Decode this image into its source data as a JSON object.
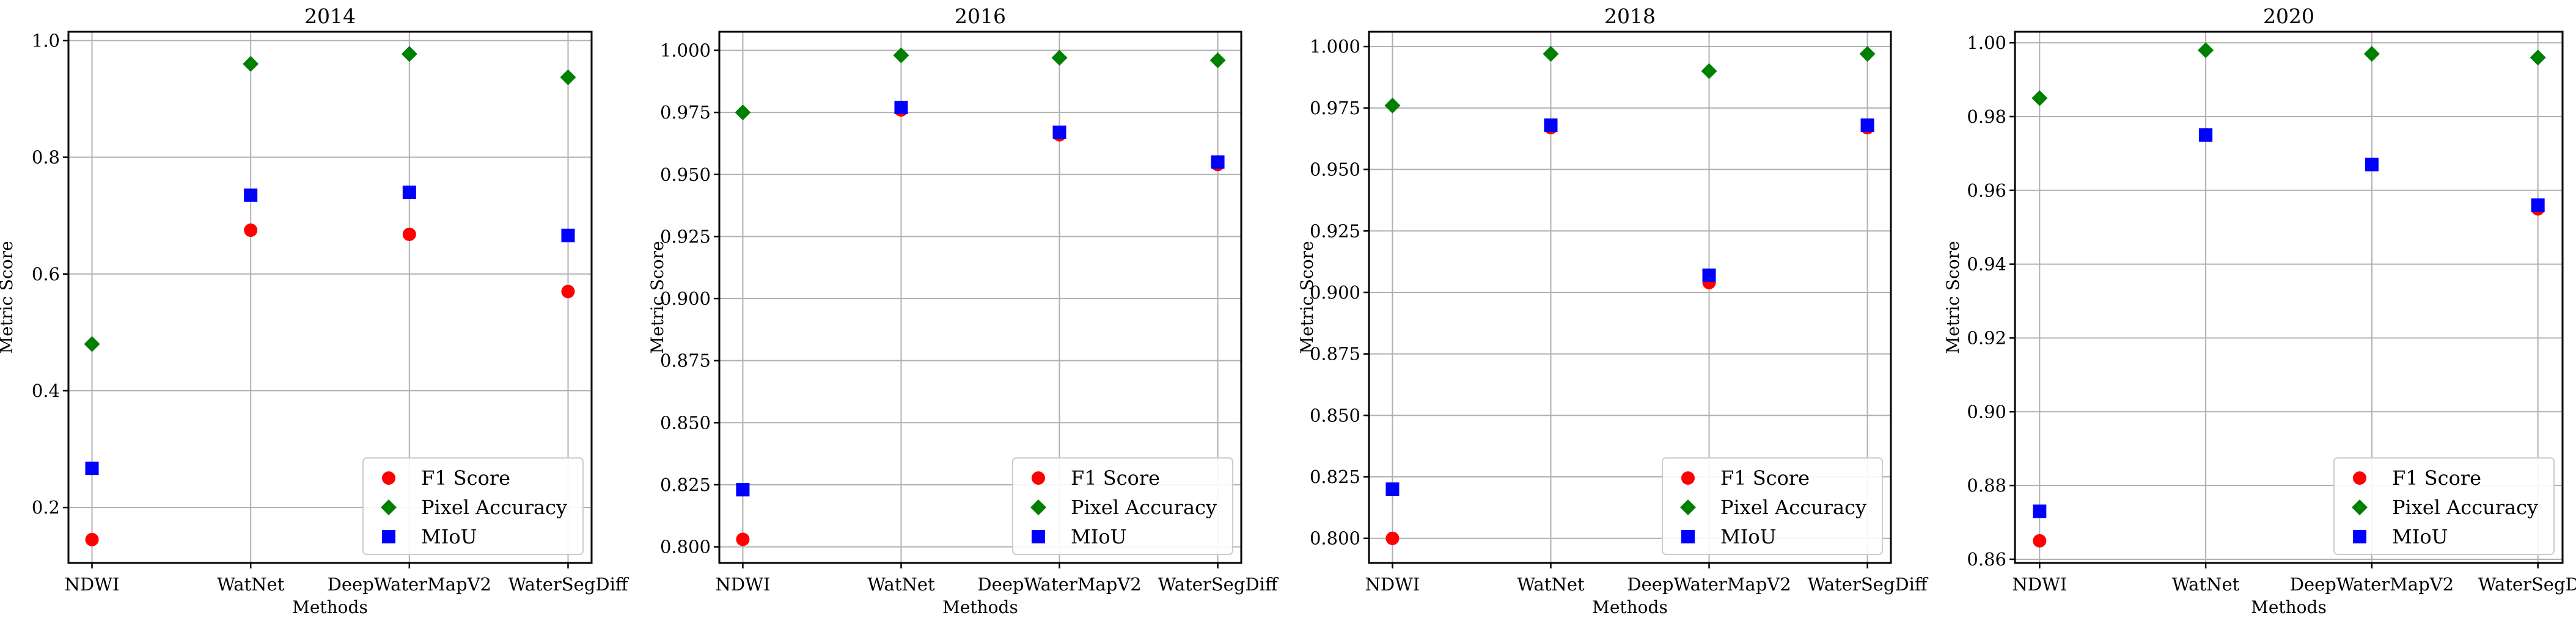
{
  "chart_data": [
    {
      "type": "scatter",
      "title": "2014",
      "xlabel": "Methods",
      "ylabel": "Metric Score",
      "categories": [
        "NDWI",
        "WatNet",
        "DeepWaterMapV2",
        "WaterSegDiff"
      ],
      "ylim": [
        0.105,
        1.015
      ],
      "yticks": [
        0.2,
        0.4,
        0.6,
        0.8,
        1.0
      ],
      "ytick_labels": [
        "0.2",
        "0.4",
        "0.6",
        "0.8",
        "1.0"
      ],
      "grid": true,
      "legend_position": "bottom-right",
      "series": [
        {
          "name": "F1 Score",
          "marker": "circle",
          "color": "#ff0000",
          "values": [
            0.145,
            0.675,
            0.668,
            0.57
          ]
        },
        {
          "name": "Pixel Accuracy",
          "marker": "diamond",
          "color": "#008000",
          "values": [
            0.48,
            0.96,
            0.977,
            0.937
          ]
        },
        {
          "name": "MIoU",
          "marker": "square",
          "color": "#0000ff",
          "values": [
            0.267,
            0.735,
            0.74,
            0.666
          ]
        }
      ]
    },
    {
      "type": "scatter",
      "title": "2016",
      "xlabel": "Methods",
      "ylabel": "Metric Score",
      "categories": [
        "NDWI",
        "WatNet",
        "DeepWaterMapV2",
        "WaterSegDiff"
      ],
      "ylim": [
        0.7935,
        1.0075
      ],
      "yticks": [
        0.8,
        0.825,
        0.85,
        0.875,
        0.9,
        0.925,
        0.95,
        0.975,
        1.0
      ],
      "ytick_labels": [
        "0.800",
        "0.825",
        "0.850",
        "0.875",
        "0.900",
        "0.925",
        "0.950",
        "0.975",
        "1.000"
      ],
      "grid": true,
      "legend_position": "bottom-right",
      "series": [
        {
          "name": "F1 Score",
          "marker": "circle",
          "color": "#ff0000",
          "values": [
            0.803,
            0.976,
            0.966,
            0.954
          ]
        },
        {
          "name": "Pixel Accuracy",
          "marker": "diamond",
          "color": "#008000",
          "values": [
            0.975,
            0.998,
            0.997,
            0.996
          ]
        },
        {
          "name": "MIoU",
          "marker": "square",
          "color": "#0000ff",
          "values": [
            0.823,
            0.977,
            0.967,
            0.955
          ]
        }
      ]
    },
    {
      "type": "scatter",
      "title": "2018",
      "xlabel": "Methods",
      "ylabel": "Metric Score",
      "categories": [
        "NDWI",
        "WatNet",
        "DeepWaterMapV2",
        "WaterSegDiff"
      ],
      "ylim": [
        0.79,
        1.006
      ],
      "yticks": [
        0.8,
        0.825,
        0.85,
        0.875,
        0.9,
        0.925,
        0.95,
        0.975,
        1.0
      ],
      "ytick_labels": [
        "0.800",
        "0.825",
        "0.850",
        "0.875",
        "0.900",
        "0.925",
        "0.950",
        "0.975",
        "1.000"
      ],
      "grid": true,
      "legend_position": "bottom-right",
      "series": [
        {
          "name": "F1 Score",
          "marker": "circle",
          "color": "#ff0000",
          "values": [
            0.8,
            0.967,
            0.904,
            0.967
          ]
        },
        {
          "name": "Pixel Accuracy",
          "marker": "diamond",
          "color": "#008000",
          "values": [
            0.976,
            0.997,
            0.99,
            0.997
          ]
        },
        {
          "name": "MIoU",
          "marker": "square",
          "color": "#0000ff",
          "values": [
            0.82,
            0.968,
            0.907,
            0.968
          ]
        }
      ]
    },
    {
      "type": "scatter",
      "title": "2020",
      "xlabel": "Methods",
      "ylabel": "Metric Score",
      "categories": [
        "NDWI",
        "WatNet",
        "DeepWaterMapV2",
        "WaterSegDiff"
      ],
      "ylim": [
        0.859,
        1.003
      ],
      "yticks": [
        0.86,
        0.88,
        0.9,
        0.92,
        0.94,
        0.96,
        0.98,
        1.0
      ],
      "ytick_labels": [
        "0.86",
        "0.88",
        "0.90",
        "0.92",
        "0.94",
        "0.96",
        "0.98",
        "1.00"
      ],
      "grid": true,
      "legend_position": "bottom-right",
      "series": [
        {
          "name": "F1 Score",
          "marker": "circle",
          "color": "#ff0000",
          "values": [
            0.865,
            0.975,
            0.967,
            0.955
          ]
        },
        {
          "name": "Pixel Accuracy",
          "marker": "diamond",
          "color": "#008000",
          "values": [
            0.985,
            0.998,
            0.997,
            0.996
          ]
        },
        {
          "name": "MIoU",
          "marker": "square",
          "color": "#0000ff",
          "values": [
            0.873,
            0.975,
            0.967,
            0.956
          ]
        }
      ]
    }
  ]
}
